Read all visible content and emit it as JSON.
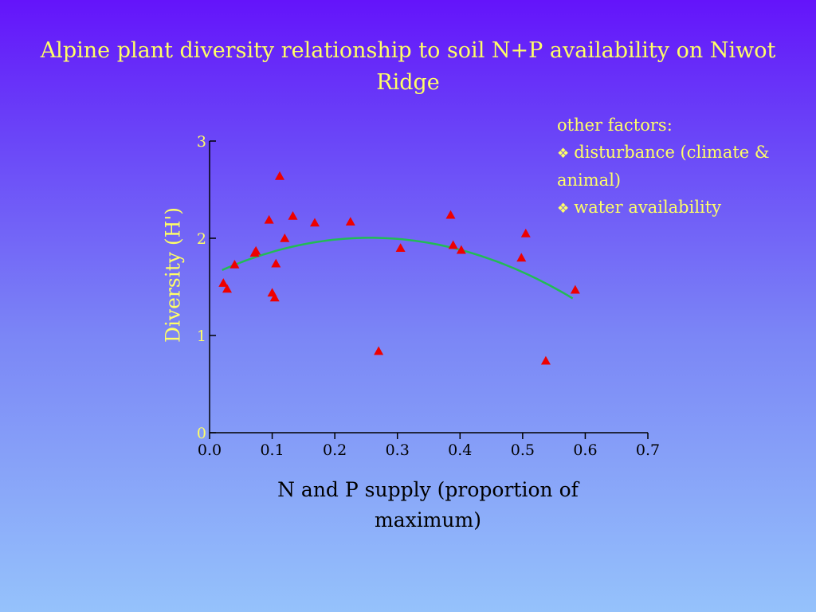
{
  "slide": {
    "title": "Alpine plant diversity relationship to soil N+P availability on Niwot Ridge"
  },
  "factors": {
    "heading": "other factors:",
    "items": [
      "disturbance (climate & animal)",
      "water availability"
    ],
    "bullet_icon": "diamond-bullet-icon"
  },
  "colors": {
    "title_text": "#ffff66",
    "marker": "#ee0000",
    "fit_line": "#22bb55",
    "axis": "#000000"
  },
  "chart_data": {
    "type": "scatter",
    "xlabel": "N and P supply (proportion of maximum)",
    "ylabel": "Diversity (H')",
    "xlim": [
      0,
      0.7
    ],
    "ylim": [
      0,
      3
    ],
    "x_ticks": [
      "0.0",
      "0.1",
      "0.2",
      "0.3",
      "0.4",
      "0.5",
      "0.6",
      "0.7"
    ],
    "y_ticks": [
      "0",
      "1",
      "2",
      "3"
    ],
    "marker": "triangle",
    "points": [
      {
        "x": 0.022,
        "y": 1.54
      },
      {
        "x": 0.028,
        "y": 1.48
      },
      {
        "x": 0.04,
        "y": 1.73
      },
      {
        "x": 0.072,
        "y": 1.85
      },
      {
        "x": 0.074,
        "y": 1.87
      },
      {
        "x": 0.095,
        "y": 2.19
      },
      {
        "x": 0.1,
        "y": 1.44
      },
      {
        "x": 0.104,
        "y": 1.39
      },
      {
        "x": 0.106,
        "y": 1.74
      },
      {
        "x": 0.112,
        "y": 2.64
      },
      {
        "x": 0.12,
        "y": 2.0
      },
      {
        "x": 0.133,
        "y": 2.23
      },
      {
        "x": 0.168,
        "y": 2.16
      },
      {
        "x": 0.225,
        "y": 2.17
      },
      {
        "x": 0.27,
        "y": 0.84
      },
      {
        "x": 0.305,
        "y": 1.9
      },
      {
        "x": 0.385,
        "y": 2.24
      },
      {
        "x": 0.389,
        "y": 1.93
      },
      {
        "x": 0.402,
        "y": 1.88
      },
      {
        "x": 0.498,
        "y": 1.8
      },
      {
        "x": 0.505,
        "y": 2.05
      },
      {
        "x": 0.537,
        "y": 0.74
      },
      {
        "x": 0.584,
        "y": 1.47
      }
    ],
    "fit": {
      "type": "quadratic",
      "coefficients": [
        1.614,
        3.05,
        -5.95
      ],
      "x_range": [
        0.02,
        0.58
      ]
    }
  }
}
